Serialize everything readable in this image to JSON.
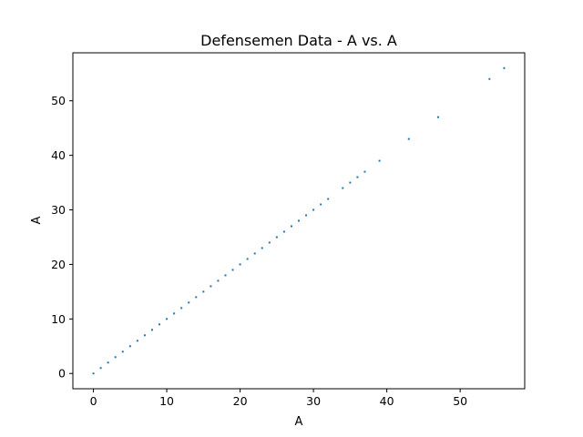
{
  "chart_data": {
    "type": "scatter",
    "title": "Defensemen Data - A vs. A",
    "xlabel": "A",
    "ylabel": "A",
    "xlim": [
      -2.8,
      58.8
    ],
    "ylim": [
      -2.8,
      58.8
    ],
    "xticks": [
      0,
      10,
      20,
      30,
      40,
      50
    ],
    "yticks": [
      0,
      10,
      20,
      30,
      40,
      50
    ],
    "grid": false,
    "marker_color": "#1f77b4",
    "series": [
      {
        "x": [
          0,
          1,
          2,
          3,
          4,
          5,
          6,
          7,
          8,
          9,
          10,
          11,
          12,
          13,
          14,
          15,
          16,
          17,
          18,
          19,
          20,
          21,
          22,
          23,
          24,
          25,
          26,
          27,
          28,
          29,
          30,
          31,
          32,
          34,
          35,
          36,
          37,
          39,
          43,
          47,
          54,
          56
        ],
        "y": [
          0,
          1,
          2,
          3,
          4,
          5,
          6,
          7,
          8,
          9,
          10,
          11,
          12,
          13,
          14,
          15,
          16,
          17,
          18,
          19,
          20,
          21,
          22,
          23,
          24,
          25,
          26,
          27,
          28,
          29,
          30,
          31,
          32,
          34,
          35,
          36,
          37,
          39,
          43,
          47,
          54,
          56
        ]
      }
    ]
  }
}
